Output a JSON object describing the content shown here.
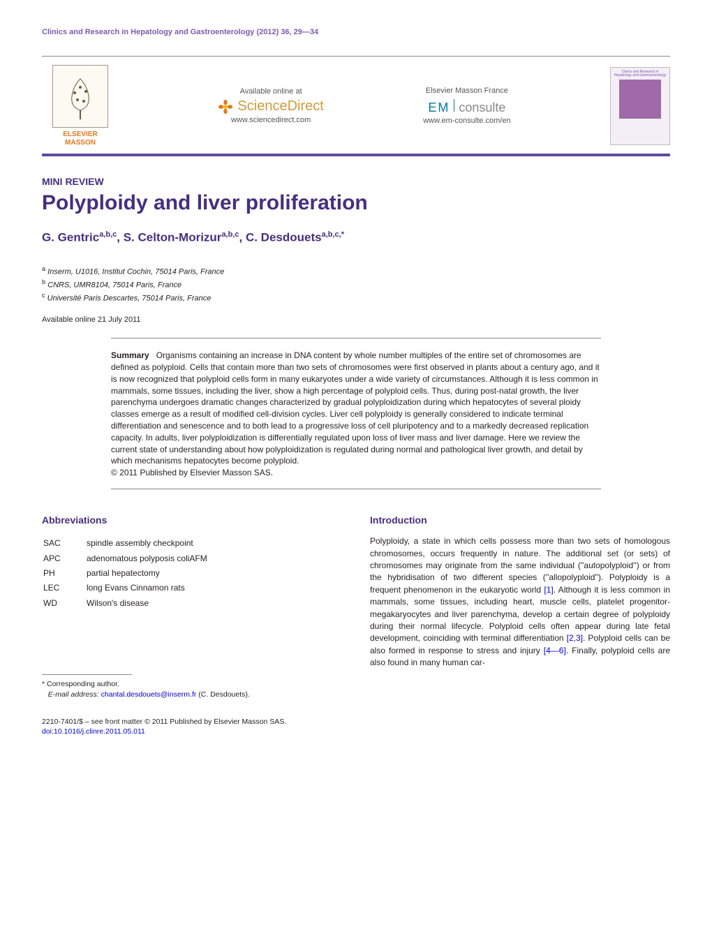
{
  "running_head": "Clinics and Research in Hepatology and Gastroenterology (2012) 36, 29—34",
  "header": {
    "publisher_names": "ELSEVIER\nMASSON",
    "available_label": "Available online at",
    "sciencedirect_text": "ScienceDirect",
    "sciencedirect_url": "www.sciencedirect.com",
    "em_france_label": "Elsevier Masson France",
    "em_text_left": "EM",
    "em_text_right": "consulte",
    "em_url": "www.em-consulte.com/en",
    "cover_journal_title": "Clinics and Research in Hepatology and Gastroenterology"
  },
  "article": {
    "type": "MINI REVIEW",
    "title": "Polyploidy and liver proliferation",
    "authors_html": "G. Gentric<sup>a,b,c</sup>, S. Celton-Morizur<sup>a,b,c</sup>, C. Desdouets<sup>a,b,c,*</sup>",
    "affiliations": [
      {
        "marker": "a",
        "text": "Inserm, U1016, Institut Cochin, 75014 Paris, France"
      },
      {
        "marker": "b",
        "text": "CNRS, UMR8104, 75014 Paris, France"
      },
      {
        "marker": "c",
        "text": "Université Paris Descartes, 75014 Paris, France"
      }
    ],
    "availability": "Available online 21 July 2011"
  },
  "summary": {
    "label": "Summary",
    "text": "Organisms containing an increase in DNA content by whole number multiples of the entire set of chromosomes are defined as polyploid. Cells that contain more than two sets of chromosomes were first observed in plants about a century ago, and it is now recognized that polyploid cells form in many eukaryotes under a wide variety of circumstances. Although it is less common in mammals, some tissues, including the liver, show a high percentage of polyploid cells. Thus, during post-natal growth, the liver parenchyma undergoes dramatic changes characterized by gradual polyploidization during which hepatocytes of several ploidy classes emerge as a result of modified cell-division cycles. Liver cell polyploidy is generally considered to indicate terminal differentiation and senescence and to both lead to a progressive loss of cell pluripotency and to a markedly decreased replication capacity. In adults, liver polyploidization is differentially regulated upon loss of liver mass and liver damage. Here we review the current state of understanding about how polyploidization is regulated during normal and pathological liver growth, and detail by which mechanisms hepatocytes become polyploid.",
    "copyright": "© 2011 Published by Elsevier Masson SAS."
  },
  "abbreviations": {
    "heading": "Abbreviations",
    "items": [
      {
        "abbr": "SAC",
        "full": "spindle assembly checkpoint"
      },
      {
        "abbr": "APC",
        "full": "adenomatous polyposis coliAFM"
      },
      {
        "abbr": "PH",
        "full": "partial hepatectomy"
      },
      {
        "abbr": "LEC",
        "full": "long Evans Cinnamon rats"
      },
      {
        "abbr": "WD",
        "full": "Wilson's disease"
      }
    ]
  },
  "introduction": {
    "heading": "Introduction",
    "body_pre": "Polyploidy, a state in which cells possess more than two sets of homologous chromosomes, occurs frequently in nature. The additional set (or sets) of chromosomes may originate from the same individual (''autopolyploid'') or from the hybridisation of two different species (''allopolyploid''). Polyploidy is a frequent phenomenon in the eukaryotic world ",
    "ref1": "[1]",
    "body_mid1": ". Although it is less common in mammals, some tissues, including heart, muscle cells, platelet progenitor-megakaryocytes and liver parenchyma, develop a certain degree of polyploidy during their normal lifecycle. Polyploid cells often appear during late fetal development, coinciding with terminal differentiation ",
    "ref2": "[2,3]",
    "body_mid2": ". Polyploid cells can be also formed in response to stress and injury ",
    "ref3": "[4—6]",
    "body_post": ". Finally, polyploid cells are also found in many human car-"
  },
  "footnote": {
    "corresponding": "* Corresponding author.",
    "email_label": "E-mail address:",
    "email": "chantal.desdouets@inserm.fr",
    "email_person": "(C. Desdouets)."
  },
  "bottom": {
    "front_matter": "2210-7401/$ – see front matter © 2011 Published by Elsevier Masson SAS.",
    "doi": "doi:10.1016/j.clinre.2011.05.011"
  },
  "colors": {
    "accent": "#462e7f",
    "accent_light": "#7c5bb0",
    "orange": "#e67817",
    "link": "#0000cc",
    "sd_gold": "#d39a3a",
    "em_blue": "#0076a3"
  }
}
